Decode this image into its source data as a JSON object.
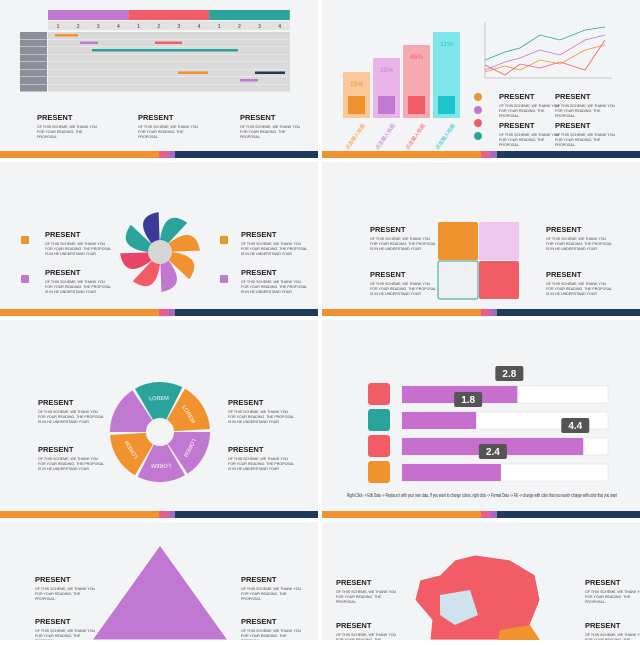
{
  "heading": "PRESENT",
  "text_short": "OF THIS SCHEME, WE THANK YOU FOR YOUR READING. THE PROPOSAL.",
  "text_long": "OF THIS SCHEME, WE THANK YOU FOR YOUR READING. THE PROPOSAL IS IN HE UNDERSTAND YOUR",
  "gantt": {
    "columns": [
      "1",
      "2",
      "3",
      "4"
    ]
  },
  "percent_bars": {
    "labels": [
      "15%",
      "35%",
      "45%",
      "11%"
    ],
    "caption": "点击输入标题"
  },
  "ring": {
    "label": "LOREM"
  },
  "hbars": {
    "values": [
      2.8,
      1.8,
      4.4,
      2.4
    ],
    "xlim": [
      0,
      5
    ],
    "note": "Right Click -> Edit Data -> Replace it with your own data. If you want to change colors, right click -> Format Data -> Fill -> change with color that you want> change with color that you want"
  }
}
